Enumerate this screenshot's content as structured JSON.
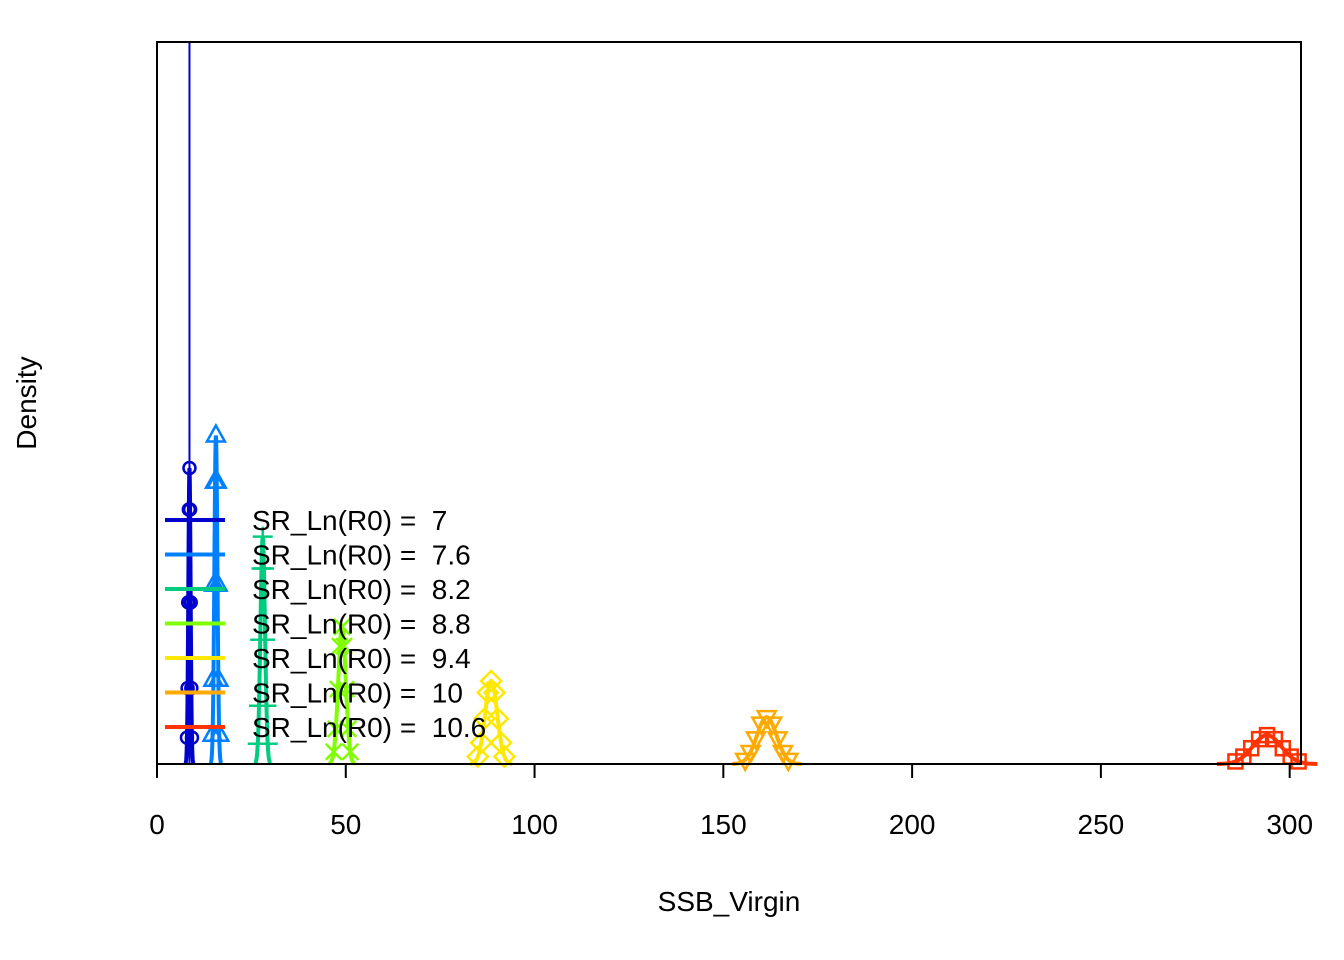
{
  "chart_data": {
    "type": "line",
    "title": "",
    "xlabel": "SSB_Virgin",
    "ylabel": "Density",
    "xlim": [
      0,
      303
    ],
    "ylim": [
      0,
      1
    ],
    "x_ticks": [
      0,
      50,
      100,
      150,
      200,
      250,
      300
    ],
    "x_tick_labels": [
      "0",
      "50",
      "100",
      "150",
      "200",
      "250",
      "300"
    ],
    "y_ticks_shown": false,
    "grid": false,
    "legend_position": "bottom-left",
    "series": [
      {
        "name": "SR_Ln(R0) =  7",
        "color": "#0000CC",
        "marker": "circle",
        "center": 8.6,
        "sd": 0.3,
        "peak": 0.41,
        "vline_x": 8.6
      },
      {
        "name": "SR_Ln(R0) =  7.6",
        "color": "#0080FF",
        "marker": "triangle-up",
        "center": 15.6,
        "sd": 0.4,
        "peak": 0.455
      },
      {
        "name": "SR_Ln(R0) =  8.2",
        "color": "#00CC80",
        "marker": "plus",
        "center": 28.0,
        "sd": 0.6,
        "peak": 0.315
      },
      {
        "name": "SR_Ln(R0) =  8.8",
        "color": "#80FF00",
        "marker": "x",
        "center": 49.0,
        "sd": 1.0,
        "peak": 0.19
      },
      {
        "name": "SR_Ln(R0) =  9.4",
        "color": "#FFE800",
        "marker": "diamond",
        "center": 88.5,
        "sd": 1.6,
        "peak": 0.115
      },
      {
        "name": "SR_Ln(R0) =  10",
        "color": "#FFAA00",
        "marker": "triangle-down",
        "center": 161.5,
        "sd": 2.6,
        "peak": 0.065
      },
      {
        "name": "SR_Ln(R0) =  10.6",
        "color": "#FF3300",
        "marker": "square",
        "center": 294.0,
        "sd": 3.8,
        "peak": 0.04
      }
    ]
  }
}
